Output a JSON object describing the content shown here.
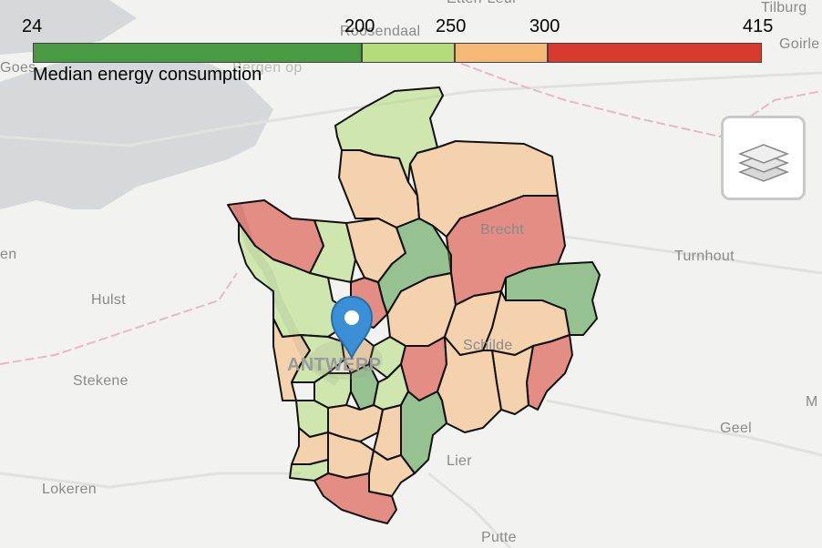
{
  "legend": {
    "title": "Median energy consumption",
    "ticks": [
      "24",
      "200",
      "250",
      "300",
      "415"
    ],
    "bins": [
      {
        "from": 24,
        "to": 200,
        "color": "#4a9a44"
      },
      {
        "from": 200,
        "to": 250,
        "color": "#b5dc7a"
      },
      {
        "from": 250,
        "to": 300,
        "color": "#f5b877"
      },
      {
        "from": 300,
        "to": 415,
        "color": "#d73a2e"
      }
    ]
  },
  "places": {
    "roosendaal": "Roosendaal",
    "tilburg": "Tilburg",
    "goirle": "Goirle",
    "bergen": "Bergen op",
    "goes": "Goes",
    "hulst": "Hulst",
    "stekene": "Stekene",
    "lokeren": "Lokeren",
    "brecht": "Brecht",
    "turnhout": "Turnhout",
    "geel": "Geel",
    "lier": "Lier",
    "putte": "Putte",
    "schilde": "Schilde",
    "antwerpen": "ANTWERP",
    "etten": "Etten-Leur",
    "left_en": "en",
    "right_m": "M"
  },
  "controls": {
    "layers_icon": "layers-icon",
    "marker_icon": "map-marker-icon"
  }
}
